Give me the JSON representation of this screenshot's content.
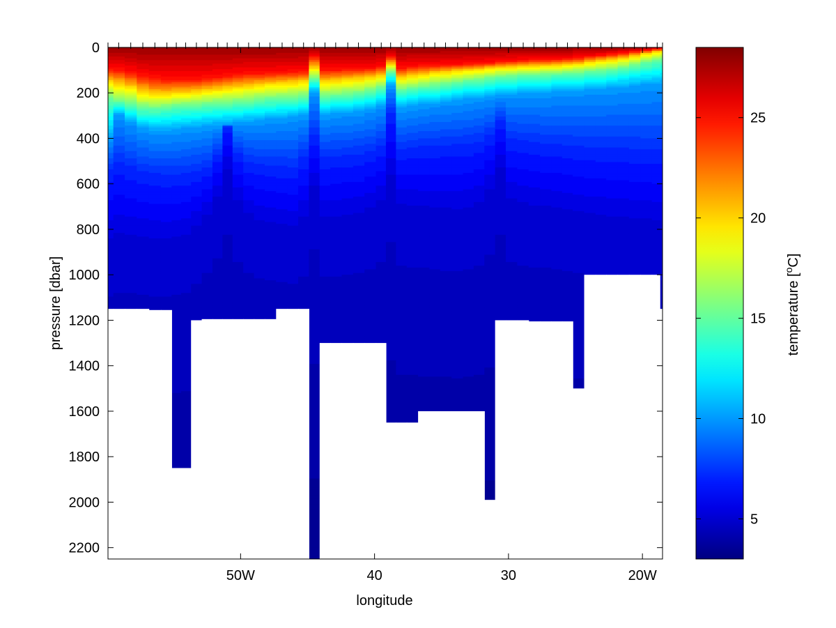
{
  "chart_data": {
    "type": "heatmap",
    "title": "",
    "xlabel": "longitude",
    "ylabel": "pressure [dbar]",
    "colorbar_label_main": "temperature [",
    "colorbar_label_sup": "o",
    "colorbar_label_end": "C]",
    "colormap": "jet",
    "xlim": [
      -59.9,
      -18.5
    ],
    "ylim": [
      0,
      2250
    ],
    "y_reversed": true,
    "x_ticks": [
      {
        "value": -50,
        "label": "50W"
      },
      {
        "value": -40,
        "label": "40"
      },
      {
        "value": -30,
        "label": "30"
      },
      {
        "value": -20,
        "label": "20W"
      }
    ],
    "y_ticks": [
      {
        "value": 0,
        "label": "0"
      },
      {
        "value": 200,
        "label": "200"
      },
      {
        "value": 400,
        "label": "400"
      },
      {
        "value": 600,
        "label": "600"
      },
      {
        "value": 800,
        "label": "800"
      },
      {
        "value": 1000,
        "label": "1000"
      },
      {
        "value": 1200,
        "label": "1200"
      },
      {
        "value": 1400,
        "label": "1400"
      },
      {
        "value": 1600,
        "label": "1600"
      },
      {
        "value": 1800,
        "label": "1800"
      },
      {
        "value": 2000,
        "label": "2000"
      },
      {
        "value": 2200,
        "label": "2200"
      }
    ],
    "clim": [
      3,
      28.5
    ],
    "colorbar_ticks": [
      {
        "value": 5,
        "label": "5"
      },
      {
        "value": 10,
        "label": "10"
      },
      {
        "value": 15,
        "label": "15"
      },
      {
        "value": 20,
        "label": "20"
      },
      {
        "value": 25,
        "label": "25"
      }
    ],
    "station_longitudes": [
      -59.9,
      -59.1,
      -58.2,
      -57.3,
      -56.4,
      -55.5,
      -54.8,
      -54.1,
      -53.3,
      -52.5,
      -51.7,
      -51.0,
      -50.2,
      -49.4,
      -48.6,
      -47.8,
      -46.9,
      -46.1,
      -45.3,
      -44.5,
      -43.7,
      -42.9,
      -42.0,
      -41.2,
      -40.3,
      -39.5,
      -38.8,
      -38.0,
      -37.2,
      -36.3,
      -35.5,
      -34.7,
      -33.8,
      -33.0,
      -32.2,
      -31.4,
      -30.6,
      -29.8,
      -28.9,
      -28.1,
      -27.2,
      -26.4,
      -25.6,
      -24.8,
      -23.9,
      -23.1,
      -22.3,
      -21.4,
      -20.6,
      -19.7,
      -18.9,
      -18.5
    ],
    "isotherm_depths": [
      {
        "temperature": 25,
        "depth_dbar": [
          95,
          100,
          110,
          125,
          135,
          140,
          140,
          140,
          140,
          135,
          130,
          125,
          120,
          115,
          115,
          112,
          110,
          108,
          105,
          40,
          100,
          98,
          96,
          95,
          92,
          85,
          40,
          90,
          86,
          82,
          80,
          78,
          76,
          74,
          72,
          68,
          62,
          60,
          58,
          56,
          54,
          52,
          50,
          46,
          40,
          35,
          30,
          25,
          18,
          12,
          6,
          5
        ]
      },
      {
        "temperature": 20,
        "depth_dbar": [
          150,
          160,
          175,
          195,
          205,
          205,
          200,
          200,
          195,
          190,
          185,
          180,
          175,
          170,
          165,
          160,
          158,
          155,
          150,
          90,
          150,
          146,
          142,
          138,
          132,
          125,
          75,
          132,
          125,
          118,
          112,
          108,
          104,
          100,
          96,
          92,
          88,
          86,
          84,
          82,
          80,
          78,
          76,
          72,
          65,
          60,
          55,
          48,
          38,
          28,
          20,
          18
        ]
      },
      {
        "temperature": 15,
        "depth_dbar": [
          230,
          240,
          255,
          270,
          270,
          265,
          260,
          258,
          255,
          252,
          250,
          248,
          245,
          240,
          235,
          230,
          228,
          225,
          220,
          140,
          220,
          215,
          210,
          205,
          195,
          180,
          110,
          190,
          182,
          175,
          168,
          162,
          156,
          150,
          144,
          138,
          132,
          128,
          126,
          124,
          122,
          120,
          118,
          115,
          110,
          105,
          100,
          92,
          80,
          70,
          60,
          55
        ]
      },
      {
        "temperature": 10,
        "depth_dbar": [
          400,
          300,
          330,
          360,
          370,
          370,
          365,
          360,
          355,
          350,
          345,
          340,
          335,
          330,
          325,
          320,
          315,
          310,
          300,
          200,
          300,
          295,
          290,
          285,
          275,
          260,
          170,
          270,
          262,
          255,
          248,
          242,
          236,
          230,
          224,
          218,
          212,
          208,
          205,
          202,
          200,
          198,
          195,
          192,
          188,
          185,
          182,
          178,
          172,
          168,
          165,
          162
        ]
      },
      {
        "temperature": 7,
        "depth_dbar": [
          550,
          520,
          540,
          560,
          570,
          575,
          575,
          570,
          560,
          540,
          480,
          350,
          480,
          520,
          530,
          535,
          540,
          545,
          500,
          400,
          500,
          495,
          490,
          485,
          470,
          450,
          300,
          460,
          455,
          450,
          448,
          446,
          444,
          440,
          430,
          400,
          330,
          420,
          430,
          435,
          440,
          445,
          450,
          455,
          460,
          462,
          465,
          468,
          470,
          472,
          474,
          475
        ]
      },
      {
        "temperature": 5,
        "depth_dbar": [
          880,
          860,
          860,
          870,
          880,
          880,
          870,
          860,
          820,
          760,
          680,
          560,
          700,
          760,
          790,
          800,
          810,
          820,
          780,
          640,
          780,
          775,
          770,
          760,
          740,
          700,
          600,
          720,
          730,
          735,
          740,
          745,
          748,
          740,
          720,
          660,
          560,
          700,
          720,
          730,
          735,
          740,
          750,
          760,
          770,
          775,
          780,
          785,
          790,
          795,
          800,
          800
        ]
      }
    ],
    "seafloor_depth_dbar": [
      1150,
      1150,
      1150,
      1150,
      1155,
      1155,
      1850,
      1850,
      1200,
      1195,
      1195,
      1195,
      1195,
      1195,
      1195,
      1195,
      1150,
      1150,
      1150,
      2250,
      1300,
      1300,
      1300,
      1300,
      1300,
      1300,
      1650,
      1650,
      1650,
      1600,
      1600,
      1600,
      1600,
      1600,
      1600,
      1990,
      1200,
      1200,
      1200,
      1205,
      1205,
      1205,
      1205,
      1500,
      1000,
      1000,
      1000,
      1000,
      1000,
      1000,
      1000,
      1150
    ],
    "data_range_min_longitude": -59.9
  }
}
